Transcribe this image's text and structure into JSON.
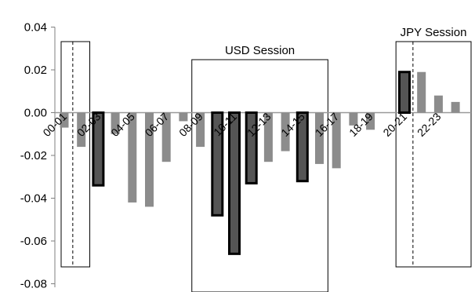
{
  "chart_data": {
    "type": "bar",
    "title": "",
    "xlabel": "",
    "ylabel": "",
    "ylim": [
      -0.08,
      0.04
    ],
    "yticks": [
      "0.04",
      "0.02",
      "0.00",
      "-0.02",
      "-0.04",
      "-0.06",
      "-0.08"
    ],
    "yticks_values": [
      0.04,
      0.02,
      0.0,
      -0.02,
      -0.04,
      -0.06,
      -0.08
    ],
    "category_labels": [
      "00-01",
      "02-03",
      "04-05",
      "06-07",
      "08-09",
      "10-11",
      "12-13",
      "14-15",
      "16-17",
      "18-19",
      "20-21",
      "22-23"
    ],
    "x": [
      0,
      1,
      2,
      3,
      4,
      5,
      6,
      7,
      8,
      9,
      10,
      11,
      12,
      13,
      14,
      15,
      16,
      17,
      18,
      19,
      20,
      21,
      22,
      23
    ],
    "series": [
      {
        "values": [
          -0.007,
          -0.016,
          -0.034,
          -0.01,
          -0.042,
          -0.044,
          -0.023,
          -0.004,
          -0.016,
          -0.048,
          -0.066,
          -0.033,
          -0.023,
          -0.018,
          -0.032,
          -0.024,
          -0.026,
          -0.006,
          -0.008,
          0.0,
          0.019,
          0.019,
          0.008,
          0.005
        ]
      }
    ],
    "highlighted_x": [
      2,
      9,
      10,
      11,
      14,
      20
    ],
    "grid": false,
    "sessions": [
      {
        "label": "",
        "x_start": -0.5,
        "x_end": 1.5
      },
      {
        "label": "USD Session",
        "x_start": 7.5,
        "x_end": 15.5
      },
      {
        "label": "JPY  Session",
        "x_start": 19.5,
        "x_end": 24.5
      }
    ],
    "dashed_lines_x": [
      0.5,
      20.5
    ],
    "colors": {
      "bar": "#8c8c8c",
      "highlight_fill": "#555555",
      "highlight_border": "#000000"
    }
  }
}
